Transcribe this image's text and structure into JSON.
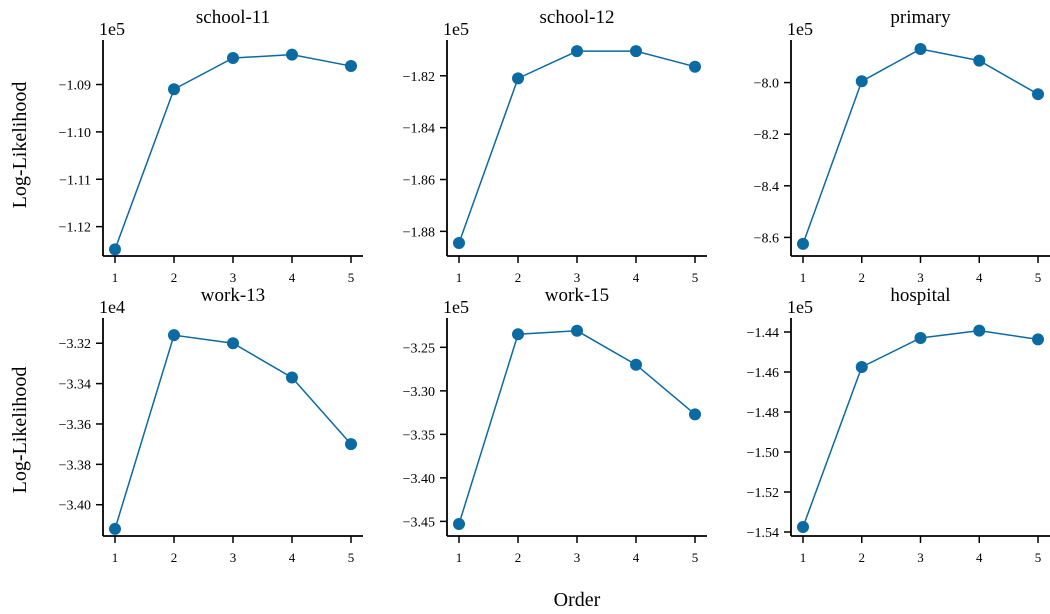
{
  "colors": {
    "series": "#0a6aa1",
    "axis": "#000000"
  },
  "figure": {
    "xlabel": "Order",
    "ylabel": "Log-Likelihood"
  },
  "chart_data": [
    {
      "type": "line",
      "title": "school-11",
      "scale_label": "1e5",
      "x": [
        1,
        2,
        3,
        4,
        5
      ],
      "values": [
        -1.1248,
        -1.091,
        -1.0844,
        -1.0837,
        -1.0861
      ],
      "ylim": [
        -1.1262,
        -1.0806
      ],
      "yticks": [
        -1.12,
        -1.11,
        -1.1,
        -1.09
      ],
      "ytick_labels": [
        "−1.12",
        "−1.11",
        "−1.10",
        "−1.09"
      ]
    },
    {
      "type": "line",
      "title": "school-12",
      "scale_label": "1e5",
      "x": [
        1,
        2,
        3,
        4,
        5
      ],
      "values": [
        -1.8845,
        -1.821,
        -1.8105,
        -1.8105,
        -1.8165
      ],
      "ylim": [
        -1.8895,
        -1.8062
      ],
      "yticks": [
        -1.88,
        -1.86,
        -1.84,
        -1.82
      ],
      "ytick_labels": [
        "−1.88",
        "−1.86",
        "−1.84",
        "−1.82"
      ]
    },
    {
      "type": "line",
      "title": "primary",
      "scale_label": "1e5",
      "x": [
        1,
        2,
        3,
        4,
        5
      ],
      "values": [
        -8.625,
        -7.995,
        -7.87,
        -7.915,
        -8.045
      ],
      "ylim": [
        -8.672,
        -7.835
      ],
      "yticks": [
        -8.6,
        -8.4,
        -8.2,
        -8.0
      ],
      "ytick_labels": [
        "−8.6",
        "−8.4",
        "−8.2",
        "−8.0"
      ]
    },
    {
      "type": "line",
      "title": "work-13",
      "scale_label": "1e4",
      "x": [
        1,
        2,
        3,
        4,
        5
      ],
      "values": [
        -3.412,
        -3.316,
        -3.32,
        -3.337,
        -3.37
      ],
      "ylim": [
        -3.4155,
        -3.3075
      ],
      "yticks": [
        -3.4,
        -3.38,
        -3.36,
        -3.34,
        -3.32
      ],
      "ytick_labels": [
        "−3.40",
        "−3.38",
        "−3.36",
        "−3.34",
        "−3.32"
      ]
    },
    {
      "type": "line",
      "title": "work-15",
      "scale_label": "1e5",
      "x": [
        1,
        2,
        3,
        4,
        5
      ],
      "values": [
        -3.453,
        -3.235,
        -3.231,
        -3.27,
        -3.327
      ],
      "ylim": [
        -3.4668,
        -3.2163
      ],
      "yticks": [
        -3.45,
        -3.4,
        -3.35,
        -3.3,
        -3.25
      ],
      "ytick_labels": [
        "−3.45",
        "−3.40",
        "−3.35",
        "−3.30",
        "−3.25"
      ]
    },
    {
      "type": "line",
      "title": "hospital",
      "scale_label": "1e5",
      "x": [
        1,
        2,
        3,
        4,
        5
      ],
      "values": [
        -1.5375,
        -1.4575,
        -1.443,
        -1.4393,
        -1.4437
      ],
      "ylim": [
        -1.542,
        -1.433
      ],
      "yticks": [
        -1.54,
        -1.52,
        -1.5,
        -1.48,
        -1.46,
        -1.44
      ],
      "ytick_labels": [
        "−1.54",
        "−1.52",
        "−1.50",
        "−1.48",
        "−1.46",
        "−1.44"
      ]
    }
  ]
}
